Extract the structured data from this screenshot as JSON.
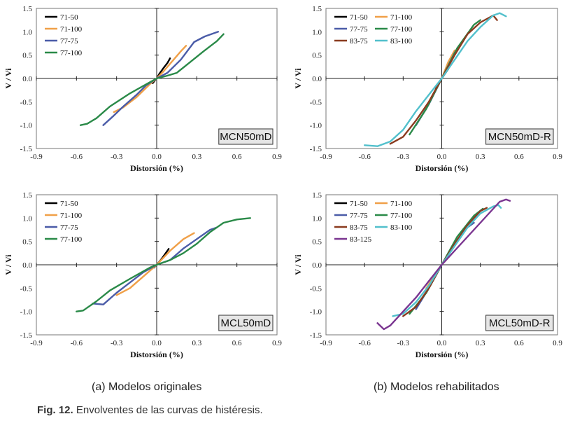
{
  "figure": {
    "sub_a": "(a) Modelos originales",
    "sub_b": "(b) Modelos rehabilitados",
    "caption_label": "Fig. 12.",
    "caption_text": " Envolventes de las curvas de histéresis."
  },
  "colors": {
    "71-50": "#000000",
    "71-100": "#f0a048",
    "77-75": "#4b5ca8",
    "77-100": "#2a8a48",
    "83-75": "#8a3b1f",
    "83-100": "#52c0cc",
    "83-125": "#7a3590"
  },
  "chart_data": [
    {
      "type": "line",
      "title": "MCN50mD",
      "xlabel": "Distorsión (%)",
      "ylabel": "V / Vi",
      "xlim": [
        -0.9,
        0.9
      ],
      "ylim": [
        -1.5,
        1.5
      ],
      "xticks": [
        "-0.9",
        "-0.6",
        "-0.3",
        "0.0",
        "0.3",
        "0.6",
        "0.9"
      ],
      "yticks": [
        "1.5",
        "1.0",
        "0.5",
        "0.0",
        "-0.5",
        "-1.0",
        "-1.5"
      ],
      "legend_columns": 1,
      "series": [
        {
          "name": "71-50",
          "x": [
            -0.03,
            -0.01,
            0,
            0.02,
            0.05,
            0.08,
            0.1
          ],
          "y": [
            -0.1,
            -0.03,
            0,
            0.1,
            0.22,
            0.33,
            0.43
          ]
        },
        {
          "name": "71-100",
          "x": [
            -0.32,
            -0.25,
            -0.15,
            -0.05,
            0,
            0.05,
            0.12,
            0.18,
            0.22
          ],
          "y": [
            -0.72,
            -0.62,
            -0.4,
            -0.12,
            0,
            0.15,
            0.38,
            0.58,
            0.7
          ]
        },
        {
          "name": "77-75",
          "x": [
            -0.4,
            -0.33,
            -0.25,
            -0.15,
            -0.08,
            0,
            0.08,
            0.18,
            0.28,
            0.36,
            0.46
          ],
          "y": [
            -1.0,
            -0.82,
            -0.6,
            -0.35,
            -0.15,
            0,
            0.12,
            0.4,
            0.78,
            0.9,
            1.0
          ]
        },
        {
          "name": "77-100",
          "x": [
            -0.57,
            -0.52,
            -0.45,
            -0.35,
            -0.2,
            -0.05,
            0,
            0.08,
            0.15,
            0.25,
            0.35,
            0.45,
            0.5
          ],
          "y": [
            -1.0,
            -0.97,
            -0.85,
            -0.6,
            -0.32,
            -0.08,
            0,
            0.06,
            0.12,
            0.35,
            0.58,
            0.8,
            0.95
          ]
        }
      ]
    },
    {
      "type": "line",
      "title": "MCN50mD-R",
      "xlabel": "Distorsión (%)",
      "ylabel": "V / Vi",
      "xlim": [
        -0.9,
        0.9
      ],
      "ylim": [
        -1.5,
        1.5
      ],
      "xticks": [
        "-0.9",
        "-0.6",
        "-0.3",
        "0.0",
        "0.3",
        "0.6",
        "0.9"
      ],
      "yticks": [
        "1.5",
        "1.0",
        "0.5",
        "0.0",
        "-0.5",
        "-1.0",
        "-1.5"
      ],
      "legend_columns": 2,
      "series": [
        {
          "name": "71-50",
          "x": [
            -0.05,
            0,
            0.05
          ],
          "y": [
            -0.2,
            0,
            0.2
          ]
        },
        {
          "name": "71-100",
          "x": [
            -0.1,
            0,
            0.05,
            0.1
          ],
          "y": [
            -0.5,
            0,
            0.35,
            0.6
          ]
        },
        {
          "name": "77-75",
          "x": [
            -0.2,
            -0.1,
            0,
            0.1,
            0.2
          ],
          "y": [
            -1.0,
            -0.55,
            0,
            0.55,
            0.95
          ]
        },
        {
          "name": "77-100",
          "x": [
            -0.25,
            -0.12,
            0,
            0.12,
            0.25,
            0.3
          ],
          "y": [
            -1.2,
            -0.65,
            0,
            0.65,
            1.15,
            1.25
          ]
        },
        {
          "name": "83-75",
          "x": [
            -0.4,
            -0.3,
            -0.2,
            -0.1,
            0,
            0.1,
            0.2,
            0.3,
            0.4,
            0.43
          ],
          "y": [
            -1.4,
            -1.25,
            -0.9,
            -0.5,
            0,
            0.5,
            0.95,
            1.2,
            1.35,
            1.25
          ]
        },
        {
          "name": "83-100",
          "x": [
            -0.6,
            -0.5,
            -0.4,
            -0.3,
            -0.2,
            -0.1,
            0,
            0.1,
            0.2,
            0.3,
            0.4,
            0.45,
            0.5
          ],
          "y": [
            -1.43,
            -1.45,
            -1.35,
            -1.1,
            -0.7,
            -0.35,
            0,
            0.4,
            0.8,
            1.1,
            1.35,
            1.4,
            1.33
          ]
        }
      ]
    },
    {
      "type": "line",
      "title": "MCL50mD",
      "xlabel": "Distorsión (%)",
      "ylabel": "V / Vi",
      "xlim": [
        -0.9,
        0.9
      ],
      "ylim": [
        -1.5,
        1.5
      ],
      "xticks": [
        "-0.9",
        "-0.6",
        "-0.3",
        "0.0",
        "0.3",
        "0.6",
        "0.9"
      ],
      "yticks": [
        "1.5",
        "1.0",
        "0.5",
        "0.0",
        "-0.5",
        "-1.0",
        "-1.5"
      ],
      "legend_columns": 1,
      "series": [
        {
          "name": "71-50",
          "x": [
            -0.02,
            0,
            0.03,
            0.06,
            0.09
          ],
          "y": [
            -0.06,
            0,
            0.1,
            0.22,
            0.34
          ]
        },
        {
          "name": "71-100",
          "x": [
            -0.3,
            -0.2,
            -0.1,
            0,
            0.1,
            0.2,
            0.28
          ],
          "y": [
            -0.65,
            -0.5,
            -0.25,
            0,
            0.3,
            0.55,
            0.68
          ]
        },
        {
          "name": "77-75",
          "x": [
            -0.48,
            -0.4,
            -0.3,
            -0.2,
            -0.1,
            0,
            0.1,
            0.2,
            0.3,
            0.4,
            0.45
          ],
          "y": [
            -0.83,
            -0.85,
            -0.6,
            -0.38,
            -0.16,
            0,
            0.1,
            0.35,
            0.55,
            0.75,
            0.8
          ]
        },
        {
          "name": "77-100",
          "x": [
            -0.6,
            -0.55,
            -0.45,
            -0.35,
            -0.2,
            -0.05,
            0,
            0.1,
            0.2,
            0.3,
            0.4,
            0.5,
            0.6,
            0.7
          ],
          "y": [
            -1.0,
            -0.98,
            -0.78,
            -0.55,
            -0.3,
            -0.06,
            0,
            0.1,
            0.25,
            0.45,
            0.7,
            0.9,
            0.97,
            1.0
          ]
        }
      ]
    },
    {
      "type": "line",
      "title": "MCL50mD-R",
      "xlabel": "Distorsión (%)",
      "ylabel": "V / Vi",
      "xlim": [
        -0.9,
        0.9
      ],
      "ylim": [
        -1.5,
        1.5
      ],
      "xticks": [
        "-0.9",
        "-0.6",
        "-0.3",
        "0.0",
        "0.3",
        "0.6",
        "0.9"
      ],
      "yticks": [
        "1.5",
        "1.0",
        "0.5",
        "0.0",
        "-0.5",
        "-1.0",
        "-1.5"
      ],
      "legend_columns": 2,
      "series": [
        {
          "name": "71-50",
          "x": [
            -0.05,
            0,
            0.05
          ],
          "y": [
            -0.2,
            0,
            0.2
          ]
        },
        {
          "name": "71-100",
          "x": [
            -0.12,
            0,
            0.08,
            0.15
          ],
          "y": [
            -0.5,
            0,
            0.35,
            0.6
          ]
        },
        {
          "name": "77-75",
          "x": [
            -0.2,
            -0.1,
            0,
            0.1,
            0.2,
            0.25
          ],
          "y": [
            -0.95,
            -0.5,
            0,
            0.45,
            0.8,
            0.9
          ]
        },
        {
          "name": "77-100",
          "x": [
            -0.25,
            -0.12,
            0,
            0.12,
            0.25,
            0.32
          ],
          "y": [
            -1.05,
            -0.6,
            0,
            0.6,
            1.05,
            1.2
          ]
        },
        {
          "name": "83-75",
          "x": [
            -0.3,
            -0.2,
            -0.1,
            0,
            0.1,
            0.2,
            0.3,
            0.35
          ],
          "y": [
            -1.1,
            -0.9,
            -0.5,
            0,
            0.45,
            0.85,
            1.15,
            1.22
          ]
        },
        {
          "name": "83-100",
          "x": [
            -0.38,
            -0.3,
            -0.2,
            -0.1,
            0,
            0.1,
            0.2,
            0.3,
            0.4,
            0.44,
            0.46
          ],
          "y": [
            -1.1,
            -1.05,
            -0.8,
            -0.45,
            0,
            0.4,
            0.8,
            1.1,
            1.25,
            1.28,
            1.22
          ]
        },
        {
          "name": "83-125",
          "x": [
            -0.5,
            -0.45,
            -0.4,
            -0.3,
            -0.2,
            -0.1,
            0,
            0.1,
            0.2,
            0.3,
            0.4,
            0.45,
            0.5,
            0.53
          ],
          "y": [
            -1.25,
            -1.38,
            -1.3,
            -1.0,
            -0.7,
            -0.35,
            0,
            0.3,
            0.6,
            0.9,
            1.2,
            1.35,
            1.4,
            1.37
          ]
        }
      ]
    }
  ]
}
